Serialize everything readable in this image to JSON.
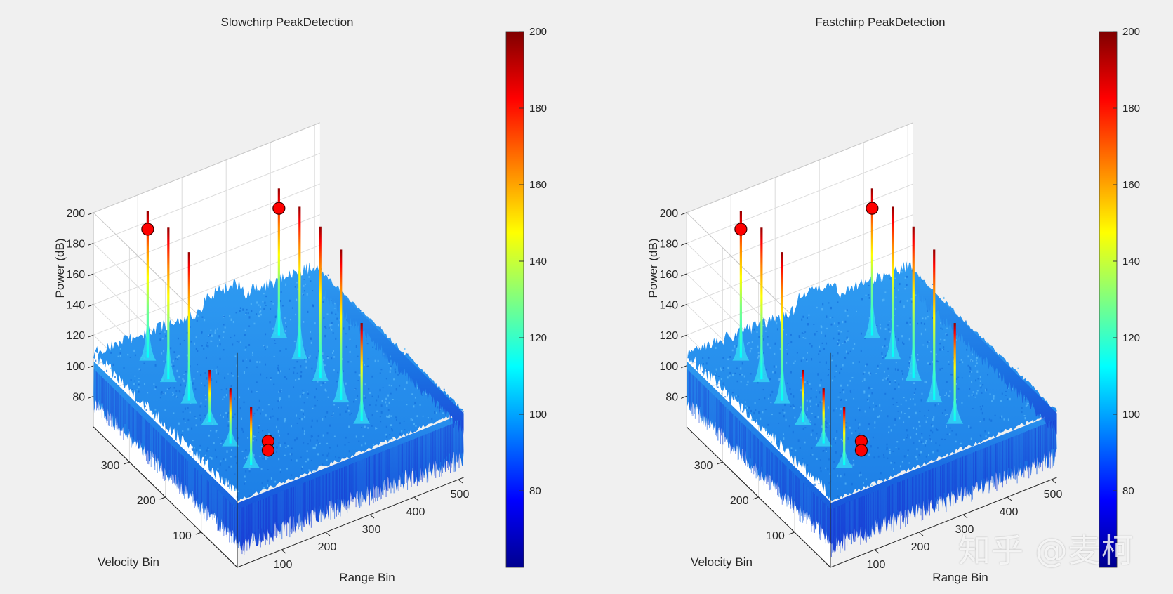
{
  "watermark": "知乎 @麦柯",
  "colormap": {
    "name": "jet",
    "stops": [
      "#00008f",
      "#0000ff",
      "#0080ff",
      "#00ffff",
      "#80ff80",
      "#ffff00",
      "#ff8000",
      "#ff0000",
      "#800000"
    ]
  },
  "chart_data": [
    {
      "type": "surface3d",
      "title": "Slowchirp PeakDetection",
      "xlabel": "Range Bin",
      "ylabel": "Velocity Bin",
      "zlabel": "Power (dB)",
      "xticks": [
        100,
        200,
        300,
        400,
        500
      ],
      "yticks": [
        100,
        200,
        300
      ],
      "zticks": [
        80,
        100,
        120,
        140,
        160,
        180,
        200
      ],
      "zlim": [
        60,
        200
      ],
      "colorbar": {
        "ticks": [
          80,
          100,
          120,
          140,
          160,
          180,
          200
        ],
        "clim": [
          60,
          200
        ]
      },
      "noise_floor_db": 100,
      "peaks_range_bin": [
        {
          "x": 80,
          "y": 60,
          "z": 142
        },
        {
          "x": 82,
          "y": 120,
          "z": 140
        },
        {
          "x": 84,
          "y": 180,
          "z": 138
        },
        {
          "x": 86,
          "y": 240,
          "z": 201
        },
        {
          "x": 88,
          "y": 300,
          "z": 203
        },
        {
          "x": 90,
          "y": 360,
          "z": 200
        }
      ],
      "peaks_far": [
        {
          "x": 330,
          "y": 60,
          "z": 168
        },
        {
          "x": 332,
          "y": 120,
          "z": 202
        },
        {
          "x": 334,
          "y": 180,
          "z": 203
        },
        {
          "x": 336,
          "y": 240,
          "z": 202
        },
        {
          "x": 338,
          "y": 300,
          "z": 200
        }
      ],
      "detections": [
        {
          "x": 86,
          "y": 20,
          "z": 128
        },
        {
          "x": 86,
          "y": 20,
          "z": 122
        },
        {
          "x": 90,
          "y": 360,
          "z": 188
        },
        {
          "x": 338,
          "y": 300,
          "z": 187
        }
      ]
    },
    {
      "type": "surface3d",
      "title": "Fastchirp PeakDetection",
      "xlabel": "Range Bin",
      "ylabel": "Velocity Bin",
      "zlabel": "Power (dB)",
      "xticks": [
        100,
        200,
        300,
        400,
        500
      ],
      "yticks": [
        100,
        200,
        300
      ],
      "zticks": [
        80,
        100,
        120,
        140,
        160,
        180,
        200
      ],
      "zlim": [
        60,
        200
      ],
      "colorbar": {
        "ticks": [
          80,
          100,
          120,
          140,
          160,
          180,
          200
        ],
        "clim": [
          60,
          200
        ]
      },
      "noise_floor_db": 100,
      "peaks_range_bin": [
        {
          "x": 80,
          "y": 60,
          "z": 142
        },
        {
          "x": 82,
          "y": 120,
          "z": 140
        },
        {
          "x": 84,
          "y": 180,
          "z": 138
        },
        {
          "x": 86,
          "y": 240,
          "z": 201
        },
        {
          "x": 88,
          "y": 300,
          "z": 203
        },
        {
          "x": 90,
          "y": 360,
          "z": 200
        }
      ],
      "peaks_far": [
        {
          "x": 330,
          "y": 60,
          "z": 168
        },
        {
          "x": 332,
          "y": 120,
          "z": 202
        },
        {
          "x": 334,
          "y": 180,
          "z": 203
        },
        {
          "x": 336,
          "y": 240,
          "z": 202
        },
        {
          "x": 338,
          "y": 300,
          "z": 200
        }
      ],
      "detections": [
        {
          "x": 86,
          "y": 20,
          "z": 128
        },
        {
          "x": 86,
          "y": 20,
          "z": 122
        },
        {
          "x": 90,
          "y": 360,
          "z": 188
        },
        {
          "x": 338,
          "y": 300,
          "z": 187
        }
      ]
    }
  ]
}
